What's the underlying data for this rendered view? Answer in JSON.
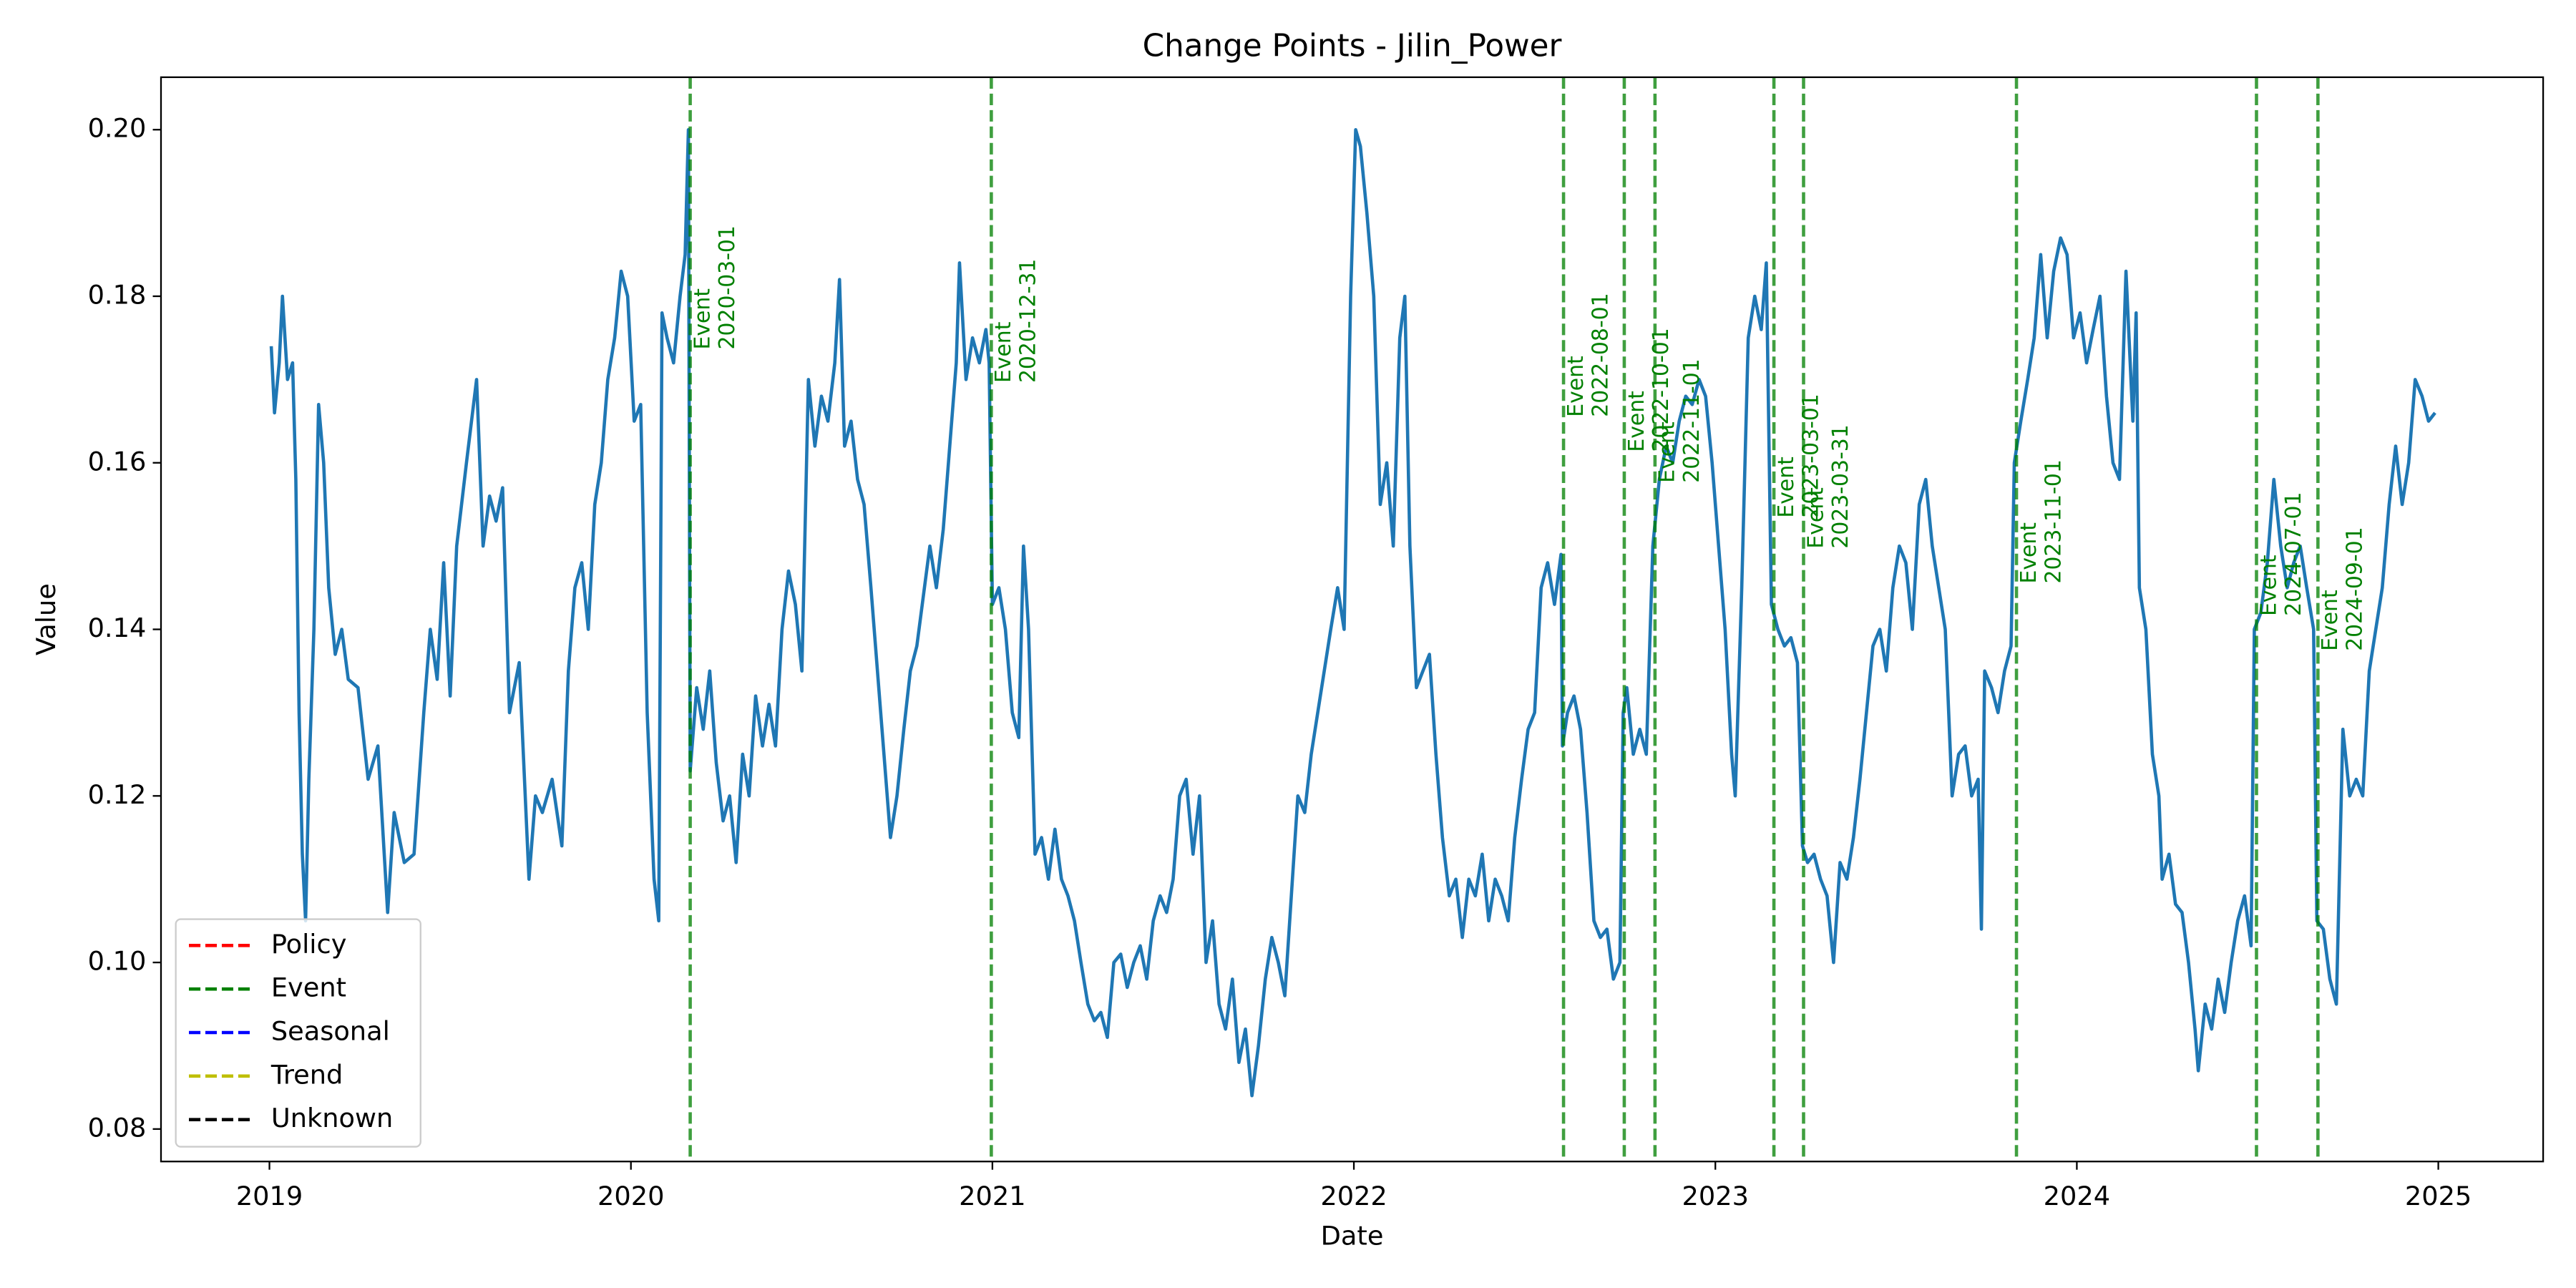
{
  "chart_data": {
    "type": "line",
    "title": "Change Points - Jilin_Power",
    "x_label": "Date",
    "y_label": "Value",
    "xlim": [
      2018.7,
      2025.29
    ],
    "ylim": [
      0.0761,
      0.2063
    ],
    "xticks": [
      2019,
      2020,
      2021,
      2022,
      2023,
      2024,
      2025
    ],
    "yticks": [
      0.08,
      {
        "value": 0.1,
        "label": "0.10"
      },
      0.12,
      0.14,
      0.16,
      0.18,
      {
        "value": 0.2,
        "label": "0.20"
      }
    ],
    "color": "#1f77b4",
    "x": [
      2019.005,
      2019.014,
      2019.027,
      2019.036,
      2019.05,
      2019.064,
      2019.073,
      2019.082,
      2019.091,
      2019.1,
      2019.109,
      2019.123,
      2019.136,
      2019.15,
      2019.164,
      2019.182,
      2019.2,
      2019.218,
      2019.245,
      2019.273,
      2019.3,
      2019.327,
      2019.345,
      2019.373,
      2019.4,
      2019.427,
      2019.445,
      2019.464,
      2019.482,
      2019.5,
      2019.518,
      2019.545,
      2019.573,
      2019.591,
      2019.609,
      2019.627,
      2019.645,
      2019.664,
      2019.691,
      2019.718,
      2019.736,
      2019.755,
      2019.782,
      2019.809,
      2019.827,
      2019.845,
      2019.864,
      2019.882,
      2019.9,
      2019.918,
      2019.936,
      2019.955,
      2019.973,
      2019.991,
      2020.009,
      2020.027,
      2020.045,
      2020.064,
      2020.077,
      2020.086,
      2020.1,
      2020.118,
      2020.136,
      2020.15,
      2020.159,
      2020.164,
      2020.182,
      2020.2,
      2020.218,
      2020.236,
      2020.255,
      2020.273,
      2020.291,
      2020.309,
      2020.327,
      2020.345,
      2020.364,
      2020.382,
      2020.4,
      2020.418,
      2020.436,
      2020.455,
      2020.473,
      2020.491,
      2020.509,
      2020.527,
      2020.545,
      2020.564,
      2020.577,
      2020.591,
      2020.609,
      2020.627,
      2020.645,
      2020.664,
      2020.682,
      2020.7,
      2020.718,
      2020.736,
      2020.755,
      2020.773,
      2020.791,
      2020.809,
      2020.827,
      2020.845,
      2020.864,
      2020.882,
      2020.9,
      2020.909,
      2020.927,
      2020.945,
      2020.964,
      2020.982,
      2020.991,
      2021.0,
      2021.018,
      2021.036,
      2021.055,
      2021.073,
      2021.086,
      2021.1,
      2021.118,
      2021.136,
      2021.155,
      2021.173,
      2021.191,
      2021.209,
      2021.227,
      2021.245,
      2021.264,
      2021.282,
      2021.3,
      2021.318,
      2021.336,
      2021.355,
      2021.373,
      2021.391,
      2021.409,
      2021.427,
      2021.445,
      2021.464,
      2021.482,
      2021.5,
      2021.518,
      2021.536,
      2021.555,
      2021.573,
      2021.591,
      2021.609,
      2021.627,
      2021.645,
      2021.664,
      2021.682,
      2021.7,
      2021.718,
      2021.736,
      2021.755,
      2021.773,
      2021.791,
      2021.809,
      2021.827,
      2021.845,
      2021.864,
      2021.882,
      2021.9,
      2021.918,
      2021.936,
      2021.955,
      2021.973,
      2021.991,
      2022.005,
      2022.018,
      2022.036,
      2022.055,
      2022.073,
      2022.091,
      2022.109,
      2022.127,
      2022.141,
      2022.155,
      2022.173,
      2022.191,
      2022.209,
      2022.227,
      2022.245,
      2022.264,
      2022.282,
      2022.3,
      2022.318,
      2022.336,
      2022.355,
      2022.373,
      2022.391,
      2022.409,
      2022.427,
      2022.445,
      2022.464,
      2022.482,
      2022.5,
      2022.518,
      2022.536,
      2022.555,
      2022.573,
      2022.577,
      2022.591,
      2022.609,
      2022.627,
      2022.645,
      2022.664,
      2022.682,
      2022.7,
      2022.718,
      2022.736,
      2022.745,
      2022.755,
      2022.773,
      2022.791,
      2022.809,
      2022.827,
      2022.845,
      2022.864,
      2022.882,
      2022.9,
      2022.918,
      2022.936,
      2022.955,
      2022.973,
      2022.991,
      2023.009,
      2023.027,
      2023.045,
      2023.055,
      2023.073,
      2023.091,
      2023.109,
      2023.127,
      2023.141,
      2023.155,
      2023.173,
      2023.191,
      2023.209,
      2023.227,
      2023.241,
      2023.255,
      2023.273,
      2023.291,
      2023.309,
      2023.327,
      2023.345,
      2023.364,
      2023.382,
      2023.4,
      2023.418,
      2023.436,
      2023.455,
      2023.473,
      2023.491,
      2023.509,
      2023.527,
      2023.545,
      2023.564,
      2023.582,
      2023.6,
      2023.618,
      2023.636,
      2023.655,
      2023.673,
      2023.691,
      2023.709,
      2023.727,
      2023.736,
      2023.745,
      2023.764,
      2023.782,
      2023.8,
      2023.818,
      2023.827,
      2023.845,
      2023.864,
      2023.882,
      2023.9,
      2023.918,
      2023.936,
      2023.955,
      2023.973,
      2023.991,
      2024.009,
      2024.027,
      2024.045,
      2024.064,
      2024.082,
      2024.1,
      2024.118,
      2024.136,
      2024.155,
      2024.164,
      2024.173,
      2024.191,
      2024.209,
      2024.227,
      2024.236,
      2024.255,
      2024.273,
      2024.291,
      2024.309,
      2024.327,
      2024.336,
      2024.355,
      2024.373,
      2024.391,
      2024.409,
      2024.427,
      2024.445,
      2024.464,
      2024.482,
      2024.491,
      2024.509,
      2024.527,
      2024.545,
      2024.564,
      2024.582,
      2024.6,
      2024.618,
      2024.636,
      2024.655,
      2024.664,
      2024.682,
      2024.7,
      2024.718,
      2024.736,
      2024.755,
      2024.773,
      2024.791,
      2024.809,
      2024.827,
      2024.845,
      2024.864,
      2024.882,
      2024.9,
      2024.918,
      2024.936,
      2024.955,
      2024.973,
      2024.991
    ],
    "values": [
      0.174,
      0.166,
      0.172,
      0.18,
      0.17,
      0.172,
      0.158,
      0.13,
      0.113,
      0.105,
      0.122,
      0.14,
      0.167,
      0.16,
      0.145,
      0.137,
      0.14,
      0.134,
      0.133,
      0.122,
      0.126,
      0.106,
      0.118,
      0.112,
      0.113,
      0.13,
      0.14,
      0.134,
      0.148,
      0.132,
      0.15,
      0.16,
      0.17,
      0.15,
      0.156,
      0.153,
      0.157,
      0.13,
      0.136,
      0.11,
      0.12,
      0.118,
      0.122,
      0.114,
      0.135,
      0.145,
      0.148,
      0.14,
      0.155,
      0.16,
      0.17,
      0.175,
      0.183,
      0.18,
      0.165,
      0.167,
      0.13,
      0.11,
      0.105,
      0.178,
      0.175,
      0.172,
      0.18,
      0.185,
      0.2,
      0.123,
      0.133,
      0.128,
      0.135,
      0.124,
      0.117,
      0.12,
      0.112,
      0.125,
      0.12,
      0.132,
      0.126,
      0.131,
      0.126,
      0.14,
      0.147,
      0.143,
      0.135,
      0.17,
      0.162,
      0.168,
      0.165,
      0.172,
      0.182,
      0.162,
      0.165,
      0.158,
      0.155,
      0.145,
      0.135,
      0.125,
      0.115,
      0.12,
      0.128,
      0.135,
      0.138,
      0.144,
      0.15,
      0.145,
      0.152,
      0.162,
      0.172,
      0.184,
      0.17,
      0.175,
      0.172,
      0.176,
      0.172,
      0.143,
      0.145,
      0.14,
      0.13,
      0.127,
      0.15,
      0.14,
      0.113,
      0.115,
      0.11,
      0.116,
      0.11,
      0.108,
      0.105,
      0.1,
      0.095,
      0.093,
      0.094,
      0.091,
      0.1,
      0.101,
      0.097,
      0.1,
      0.102,
      0.098,
      0.105,
      0.108,
      0.106,
      0.11,
      0.12,
      0.122,
      0.113,
      0.12,
      0.1,
      0.105,
      0.095,
      0.092,
      0.098,
      0.088,
      0.092,
      0.084,
      0.09,
      0.098,
      0.103,
      0.1,
      0.096,
      0.108,
      0.12,
      0.118,
      0.125,
      0.13,
      0.135,
      0.14,
      0.145,
      0.14,
      0.18,
      0.2,
      0.198,
      0.19,
      0.18,
      0.155,
      0.16,
      0.15,
      0.175,
      0.18,
      0.15,
      0.133,
      0.135,
      0.137,
      0.125,
      0.115,
      0.108,
      0.11,
      0.103,
      0.11,
      0.108,
      0.113,
      0.105,
      0.11,
      0.108,
      0.105,
      0.115,
      0.122,
      0.128,
      0.13,
      0.145,
      0.148,
      0.143,
      0.149,
      0.126,
      0.13,
      0.132,
      0.128,
      0.118,
      0.105,
      0.103,
      0.104,
      0.098,
      0.1,
      0.13,
      0.133,
      0.125,
      0.128,
      0.125,
      0.15,
      0.158,
      0.162,
      0.16,
      0.165,
      0.168,
      0.167,
      0.17,
      0.168,
      0.16,
      0.15,
      0.14,
      0.125,
      0.12,
      0.145,
      0.175,
      0.18,
      0.176,
      0.184,
      0.143,
      0.14,
      0.138,
      0.139,
      0.136,
      0.114,
      0.112,
      0.113,
      0.11,
      0.108,
      0.1,
      0.112,
      0.11,
      0.115,
      0.122,
      0.13,
      0.138,
      0.14,
      0.135,
      0.145,
      0.15,
      0.148,
      0.14,
      0.155,
      0.158,
      0.15,
      0.145,
      0.14,
      0.12,
      0.125,
      0.126,
      0.12,
      0.122,
      0.104,
      0.135,
      0.133,
      0.13,
      0.135,
      0.138,
      0.16,
      0.165,
      0.17,
      0.175,
      0.185,
      0.175,
      0.183,
      0.187,
      0.185,
      0.175,
      0.178,
      0.172,
      0.176,
      0.18,
      0.168,
      0.16,
      0.158,
      0.183,
      0.165,
      0.178,
      0.145,
      0.14,
      0.125,
      0.12,
      0.11,
      0.113,
      0.107,
      0.106,
      0.1,
      0.092,
      0.087,
      0.095,
      0.092,
      0.098,
      0.094,
      0.1,
      0.105,
      0.108,
      0.102,
      0.14,
      0.142,
      0.148,
      0.158,
      0.15,
      0.145,
      0.148,
      0.15,
      0.145,
      0.14,
      0.105,
      0.104,
      0.098,
      0.095,
      0.128,
      0.12,
      0.122,
      0.12,
      0.135,
      0.14,
      0.145,
      0.155,
      0.162,
      0.155,
      0.16,
      0.17,
      0.168,
      0.165,
      0.166
    ],
    "change_points": [
      {
        "type": "Event",
        "date": "2020-03-01",
        "x": 2020.164,
        "y": 0.1736
      },
      {
        "type": "Event",
        "date": "2020-12-31",
        "x": 2020.997,
        "y": 0.1696
      },
      {
        "type": "Event",
        "date": "2022-08-01",
        "x": 2022.58,
        "y": 0.1655
      },
      {
        "type": "Event",
        "date": "2022-10-01",
        "x": 2022.748,
        "y": 0.1613
      },
      {
        "type": "Event",
        "date": "2022-11-01",
        "x": 2022.833,
        "y": 0.1576
      },
      {
        "type": "Event",
        "date": "2023-03-01",
        "x": 2023.162,
        "y": 0.1534
      },
      {
        "type": "Event",
        "date": "2023-03-31",
        "x": 2023.244,
        "y": 0.1497
      },
      {
        "type": "Event",
        "date": "2023-11-01",
        "x": 2023.833,
        "y": 0.1455
      },
      {
        "type": "Event",
        "date": "2024-07-01",
        "x": 2024.497,
        "y": 0.1416
      },
      {
        "type": "Event",
        "date": "2024-09-01",
        "x": 2024.667,
        "y": 0.1374
      }
    ],
    "legend": {
      "loc": "lower left",
      "entries": [
        {
          "name": "Policy",
          "color": "#ff0000"
        },
        {
          "name": "Event",
          "color": "#008000"
        },
        {
          "name": "Seasonal",
          "color": "#0000ff"
        },
        {
          "name": "Trend",
          "color": "#bfbf00"
        },
        {
          "name": "Unknown",
          "color": "#000000"
        }
      ]
    }
  }
}
